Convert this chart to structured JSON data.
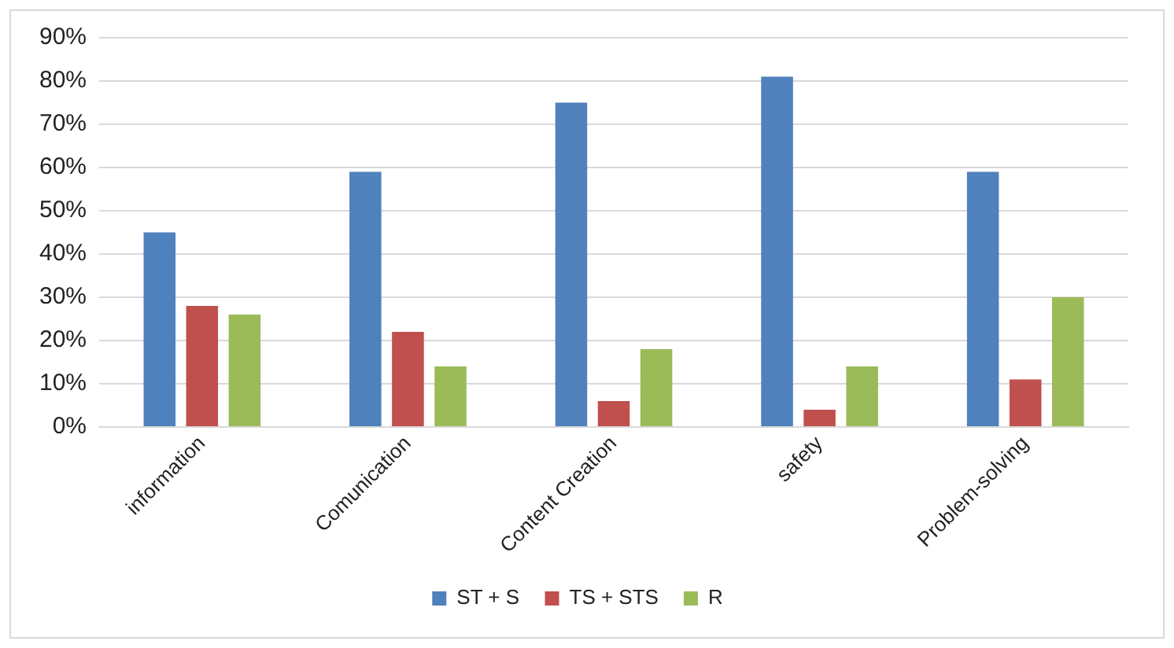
{
  "chart_data": {
    "type": "bar",
    "categories": [
      "information",
      "Comunication",
      "Content Creation",
      "safety",
      "Problem-solving"
    ],
    "series": [
      {
        "name": "ST + S",
        "color": "#4f81bd",
        "values": [
          45,
          59,
          75,
          81,
          59
        ]
      },
      {
        "name": "TS + STS",
        "color": "#c0504d",
        "values": [
          28,
          22,
          6,
          4,
          11
        ]
      },
      {
        "name": "R",
        "color": "#9bbb59",
        "values": [
          26,
          14,
          18,
          14,
          30
        ]
      }
    ],
    "ylim": [
      0,
      90
    ],
    "yticks": [
      {
        "value": 0,
        "label": "0%"
      },
      {
        "value": 10,
        "label": "10%"
      },
      {
        "value": 20,
        "label": "20%"
      },
      {
        "value": 30,
        "label": "30%"
      },
      {
        "value": 40,
        "label": "40%"
      },
      {
        "value": 50,
        "label": "50%"
      },
      {
        "value": 60,
        "label": "60%"
      },
      {
        "value": 70,
        "label": "70%"
      },
      {
        "value": 80,
        "label": "80%"
      },
      {
        "value": 90,
        "label": "90%"
      }
    ],
    "grid": "y",
    "legend": "bottom"
  }
}
